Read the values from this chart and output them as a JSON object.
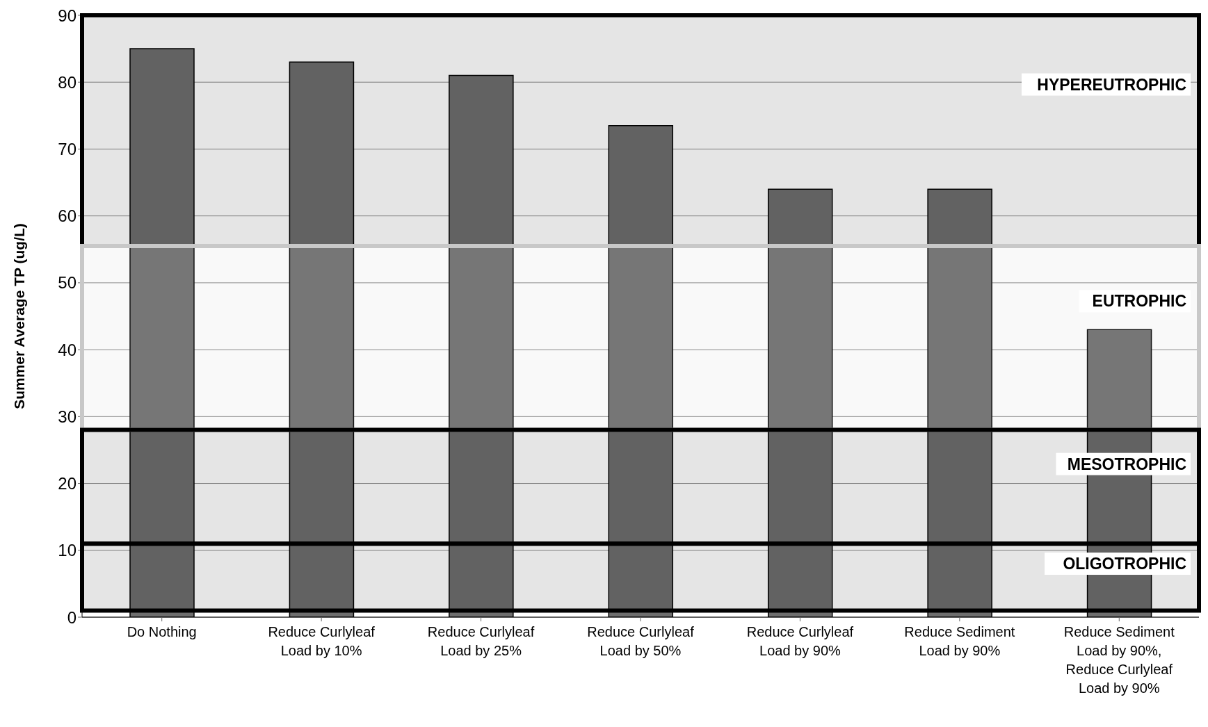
{
  "chart_data": {
    "type": "bar",
    "ylabel": "Summer Average TP (ug/L)",
    "categories": [
      "Do Nothing",
      "Reduce Curlyleaf\nLoad by 10%",
      "Reduce Curlyleaf\nLoad by 25%",
      "Reduce Curlyleaf\nLoad by 50%",
      "Reduce Curlyleaf\nLoad by 90%",
      "Reduce Sediment\nLoad by 90%",
      "Reduce Sediment\nLoad by 90%,\nReduce Curlyleaf\nLoad by 90%"
    ],
    "values": [
      85,
      83,
      81,
      73.5,
      64,
      64,
      43
    ],
    "color": "#6e6e6e",
    "ylim": [
      0,
      90
    ],
    "yticks": [
      0,
      10,
      20,
      30,
      40,
      50,
      60,
      70,
      80,
      90
    ],
    "grid": "y",
    "legend": false,
    "bands": [
      {
        "axis": "y",
        "from": 55.5,
        "to": 90,
        "label": "HYPEREUTROPHIC",
        "color": "#000000"
      },
      {
        "axis": "y",
        "from": 28,
        "to": 55.5,
        "label": "EUTROPHIC",
        "color": "#c8c8c8"
      },
      {
        "axis": "y",
        "from": 11,
        "to": 28,
        "label": "MESOTROPHIC",
        "color": "#000000"
      },
      {
        "axis": "y",
        "from": 1,
        "to": 11,
        "label": "OLIGOTROPHIC",
        "color": "#000000"
      }
    ]
  }
}
